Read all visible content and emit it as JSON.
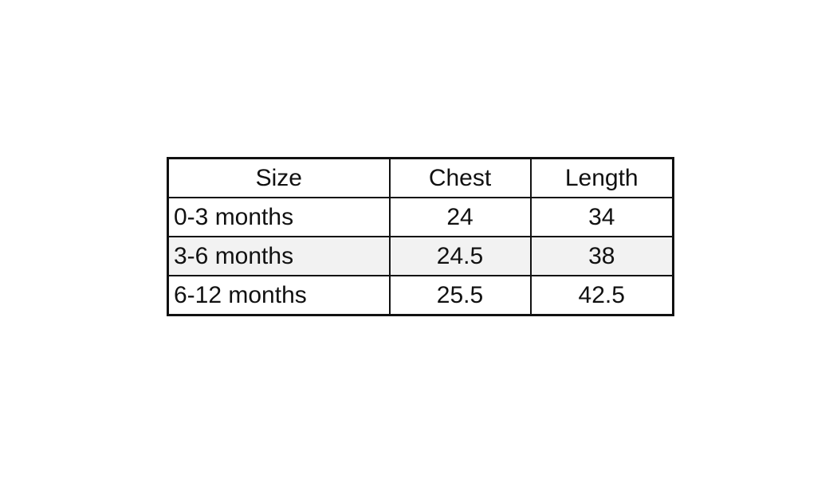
{
  "table": {
    "header": [
      "Size",
      "Chest",
      "Length"
    ],
    "rows": [
      [
        "0-3 months",
        24,
        34
      ],
      [
        "3-6 months",
        24.5,
        38
      ],
      [
        "6-12 months",
        25.5,
        42.5
      ]
    ]
  }
}
